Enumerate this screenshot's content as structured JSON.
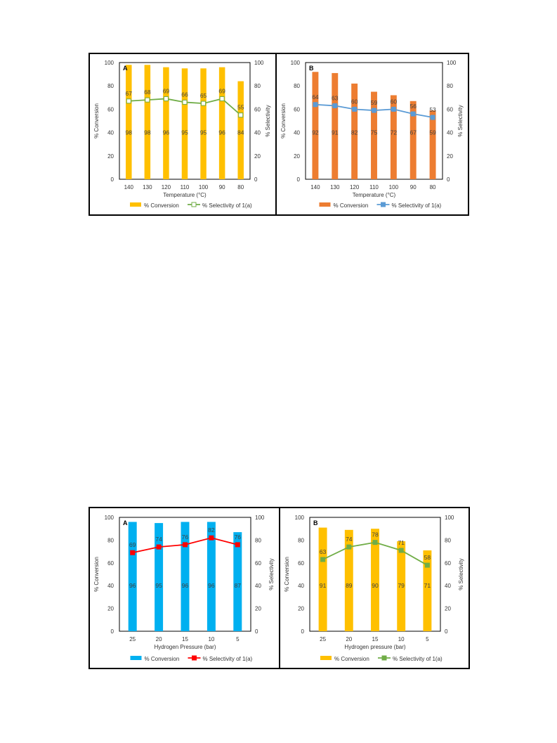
{
  "chart_data": [
    {
      "panel": "A",
      "type": "bar+line",
      "categories": [
        "140",
        "130",
        "120",
        "110",
        "100",
        "90",
        "80"
      ],
      "xlabel": "Temperature (°C)",
      "ylabel": "% Conversion",
      "y2label": "% Selectivity",
      "ylim": [
        0,
        100
      ],
      "y2lim": [
        0,
        100
      ],
      "yticks": [
        0,
        20,
        40,
        60,
        80,
        100
      ],
      "legend_position": "bottom",
      "series": [
        {
          "name": "% Conversion",
          "kind": "bar",
          "color": "#FFC000",
          "values": [
            98,
            98,
            96,
            95,
            95,
            96,
            84
          ]
        },
        {
          "name": "% Selectivity of 1(a)",
          "kind": "line",
          "color": "#70AD47",
          "marker": "hollow-square",
          "values": [
            67,
            68,
            69,
            66,
            65,
            69,
            55
          ]
        }
      ]
    },
    {
      "panel": "B",
      "type": "bar+line",
      "categories": [
        "140",
        "130",
        "120",
        "110",
        "100",
        "90",
        "80"
      ],
      "xlabel": "Temperature (°C)",
      "ylabel": "% Conversion",
      "y2label": "% Selectivity",
      "ylim": [
        0,
        100
      ],
      "y2lim": [
        0,
        100
      ],
      "yticks": [
        0,
        20,
        40,
        60,
        80,
        100
      ],
      "legend_position": "bottom",
      "series": [
        {
          "name": "% Conversion",
          "kind": "bar",
          "color": "#ED7D31",
          "values": [
            92,
            91,
            82,
            75,
            72,
            67,
            59
          ]
        },
        {
          "name": "% Selectivity of 1(a)",
          "kind": "line",
          "color": "#5B9BD5",
          "marker": "filled-square",
          "values": [
            64,
            63,
            60,
            59,
            60,
            56,
            53
          ]
        }
      ]
    },
    {
      "panel": "A",
      "type": "bar+line",
      "categories": [
        "25",
        "20",
        "15",
        "10",
        "5"
      ],
      "xlabel": "Hydrogen Pressure (bar)",
      "ylabel": "% Conversion",
      "y2label": "% Selectivity",
      "ylim": [
        0,
        100
      ],
      "y2lim": [
        0,
        100
      ],
      "yticks": [
        0,
        20,
        40,
        60,
        80,
        100
      ],
      "legend_position": "bottom",
      "series": [
        {
          "name": "% Conversion",
          "kind": "bar",
          "color": "#00B0F0",
          "values": [
            96,
            95,
            96,
            96,
            87
          ]
        },
        {
          "name": "% Selectivity of 1(a)",
          "kind": "line",
          "color": "#FF0000",
          "marker": "filled-square",
          "values": [
            69,
            74,
            76,
            82,
            76
          ]
        }
      ]
    },
    {
      "panel": "B",
      "type": "bar+line",
      "categories": [
        "25",
        "20",
        "15",
        "10",
        "5"
      ],
      "xlabel": "Hydrogen pressure (bar)",
      "ylabel": "% Conversion",
      "y2label": "% Selectivity",
      "ylim": [
        0,
        100
      ],
      "y2lim": [
        0,
        100
      ],
      "yticks": [
        0,
        20,
        40,
        60,
        80,
        100
      ],
      "legend_position": "bottom",
      "series": [
        {
          "name": "% Conversion",
          "kind": "bar",
          "color": "#FFC000",
          "values": [
            91,
            89,
            90,
            79,
            71
          ]
        },
        {
          "name": "% Selectivity of 1(a)",
          "kind": "line",
          "color": "#70AD47",
          "marker": "filled-square",
          "values": [
            63,
            74,
            78,
            71,
            58
          ]
        }
      ]
    }
  ]
}
